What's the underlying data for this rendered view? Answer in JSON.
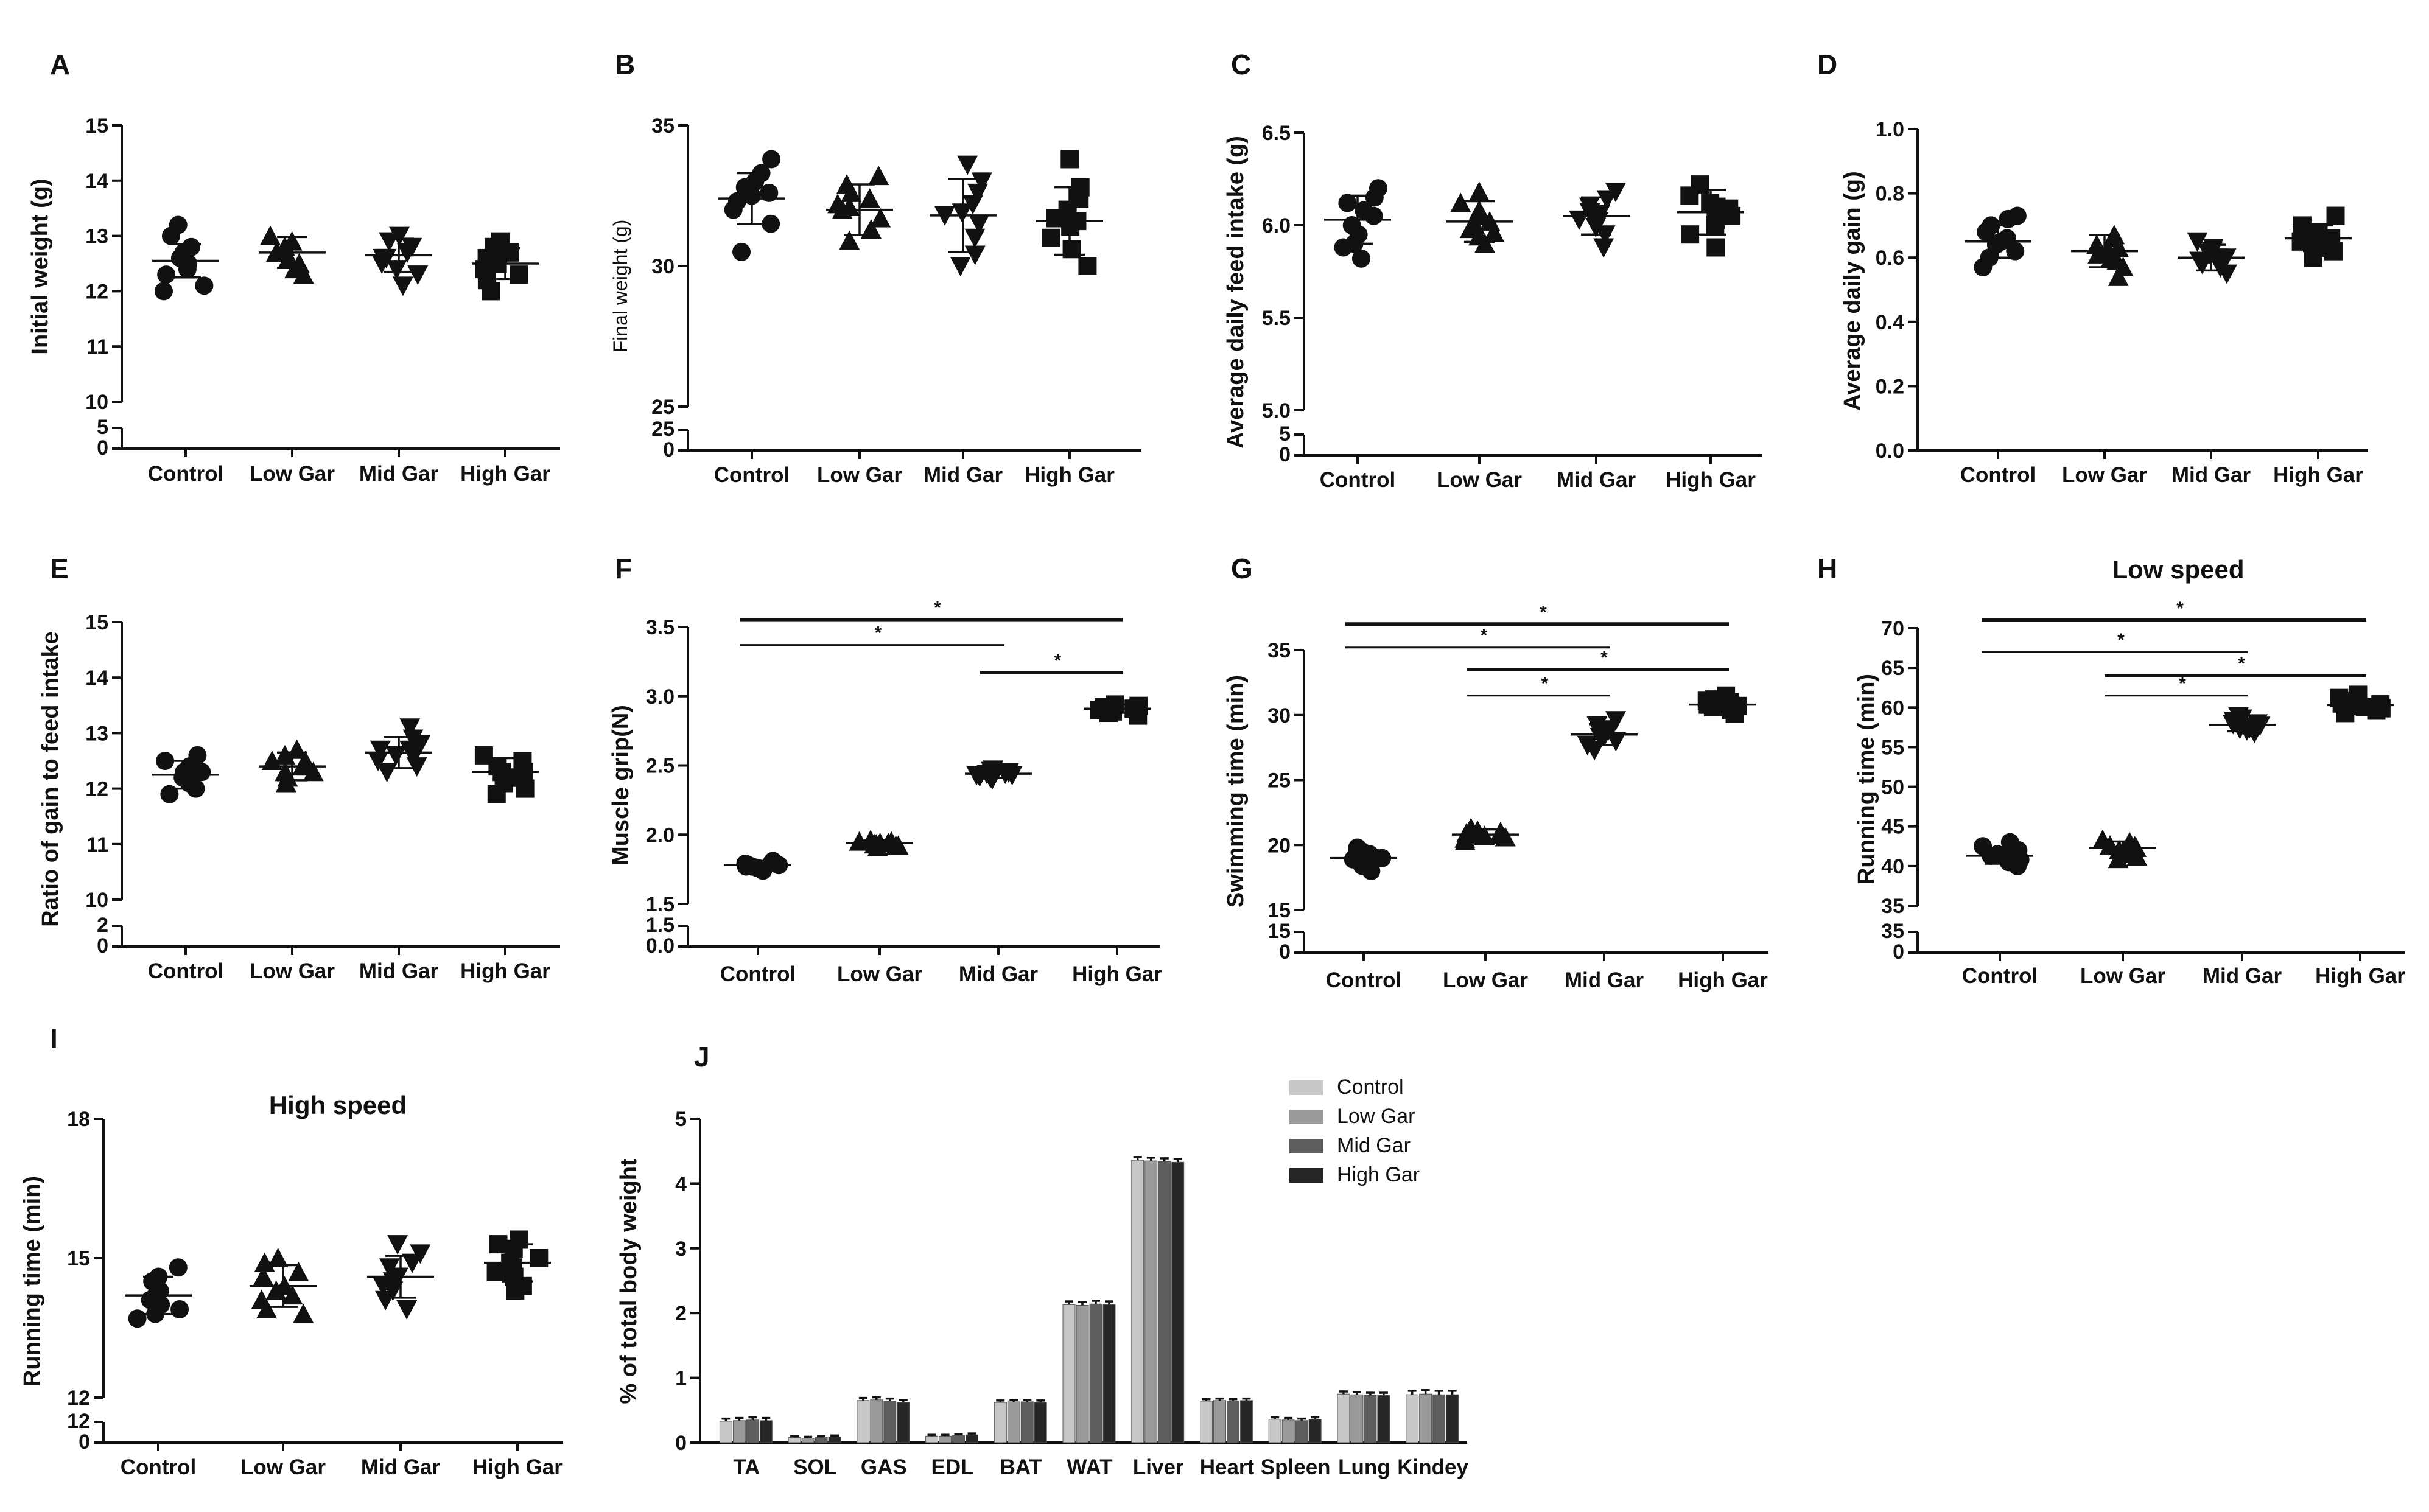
{
  "figure": {
    "panel_letters": [
      "A",
      "B",
      "C",
      "D",
      "E",
      "F",
      "G",
      "H",
      "I",
      "J"
    ],
    "categories": [
      "Control",
      "Low Gar",
      "Mid Gar",
      "High Gar"
    ],
    "significance_mark": "*"
  },
  "chart_data": [
    {
      "id": "A",
      "type": "scatter",
      "title": "",
      "ylabel": "Initial weight (g)",
      "categories": [
        "Control",
        "Low Gar",
        "Mid Gar",
        "High Gar"
      ],
      "ylim": [
        10,
        15
      ],
      "yticks": [
        "10",
        "11",
        "12",
        "13",
        "14",
        "15"
      ],
      "axis_break": {
        "lower_ticks": [
          "0",
          "5"
        ]
      },
      "marker_by_group": [
        "circle",
        "triangle",
        "triangle-down",
        "square"
      ],
      "summary": [
        {
          "mean": 12.55,
          "sd": 0.3
        },
        {
          "mean": 12.7,
          "sd": 0.28
        },
        {
          "mean": 12.65,
          "sd": 0.3
        },
        {
          "mean": 12.5,
          "sd": 0.28
        }
      ],
      "points": [
        [
          12.0,
          12.1,
          12.3,
          12.5,
          12.6,
          12.7,
          12.8,
          13.0,
          13.2,
          12.4
        ],
        [
          12.3,
          12.4,
          12.5,
          12.6,
          12.7,
          12.8,
          12.9,
          13.0,
          12.7,
          12.6
        ],
        [
          12.1,
          12.3,
          12.4,
          12.6,
          12.7,
          12.8,
          12.9,
          13.0,
          12.6,
          12.5
        ],
        [
          12.0,
          12.2,
          12.3,
          12.4,
          12.5,
          12.6,
          12.7,
          12.8,
          12.9,
          12.5
        ]
      ],
      "significance": []
    },
    {
      "id": "B",
      "type": "scatter",
      "title": "",
      "ylabel": "Final weight (g)",
      "categories": [
        "Control",
        "Low Gar",
        "Mid Gar",
        "High Gar"
      ],
      "ylim": [
        25,
        35
      ],
      "yticks": [
        "25",
        "30",
        "35"
      ],
      "axis_break": {
        "lower_ticks": [
          "0",
          "25"
        ]
      },
      "marker_by_group": [
        "circle",
        "triangle",
        "triangle-down",
        "square"
      ],
      "summary": [
        {
          "mean": 32.4,
          "sd": 0.9
        },
        {
          "mean": 32.0,
          "sd": 0.9
        },
        {
          "mean": 31.8,
          "sd": 1.3
        },
        {
          "mean": 31.6,
          "sd": 1.2
        }
      ],
      "points": [
        [
          30.5,
          31.5,
          32.0,
          32.3,
          32.5,
          32.6,
          32.8,
          33.0,
          33.3,
          33.8
        ],
        [
          30.9,
          31.3,
          31.7,
          32.0,
          32.2,
          32.4,
          32.6,
          32.9,
          33.2,
          32.1
        ],
        [
          30.0,
          30.4,
          31.0,
          31.5,
          31.8,
          32.2,
          32.6,
          33.0,
          33.6,
          31.9
        ],
        [
          30.0,
          30.6,
          31.0,
          31.4,
          31.7,
          32.0,
          32.4,
          32.8,
          33.8,
          31.6
        ]
      ],
      "significance": []
    },
    {
      "id": "C",
      "type": "scatter",
      "title": "",
      "ylabel": "Average daily feed intake (g)",
      "categories": [
        "Control",
        "Low Gar",
        "Mid Gar",
        "High Gar"
      ],
      "ylim": [
        5.0,
        6.5
      ],
      "yticks": [
        "5.0",
        "5.5",
        "6.0",
        "6.5"
      ],
      "axis_break": {
        "lower_ticks": [
          "0",
          "5"
        ]
      },
      "marker_by_group": [
        "circle",
        "triangle",
        "triangle-down",
        "square"
      ],
      "summary": [
        {
          "mean": 6.03,
          "sd": 0.13
        },
        {
          "mean": 6.02,
          "sd": 0.11
        },
        {
          "mean": 6.05,
          "sd": 0.1
        },
        {
          "mean": 6.07,
          "sd": 0.12
        }
      ],
      "points": [
        [
          5.82,
          5.88,
          5.95,
          6.0,
          6.05,
          6.08,
          6.12,
          6.15,
          6.2,
          5.9
        ],
        [
          5.9,
          5.94,
          5.98,
          6.02,
          6.05,
          6.08,
          6.12,
          6.18,
          5.96,
          6.0
        ],
        [
          5.88,
          5.95,
          5.99,
          6.03,
          6.07,
          6.1,
          6.14,
          6.18,
          6.02,
          6.06
        ],
        [
          5.88,
          5.95,
          6.0,
          6.05,
          6.09,
          6.12,
          6.16,
          6.22,
          6.03,
          6.1
        ]
      ],
      "significance": []
    },
    {
      "id": "D",
      "type": "scatter",
      "title": "",
      "ylabel": "Average daily gain (g)",
      "categories": [
        "Control",
        "Low Gar",
        "Mid Gar",
        "High Gar"
      ],
      "ylim": [
        0.0,
        1.0
      ],
      "yticks": [
        "0.0",
        "0.2",
        "0.4",
        "0.6",
        "0.8",
        "1.0"
      ],
      "axis_break": null,
      "marker_by_group": [
        "circle",
        "triangle",
        "triangle-down",
        "square"
      ],
      "summary": [
        {
          "mean": 0.65,
          "sd": 0.05
        },
        {
          "mean": 0.62,
          "sd": 0.05
        },
        {
          "mean": 0.6,
          "sd": 0.04
        },
        {
          "mean": 0.66,
          "sd": 0.04
        }
      ],
      "points": [
        [
          0.57,
          0.6,
          0.62,
          0.64,
          0.65,
          0.66,
          0.68,
          0.7,
          0.72,
          0.73
        ],
        [
          0.54,
          0.57,
          0.59,
          0.61,
          0.62,
          0.64,
          0.66,
          0.67,
          0.6,
          0.63
        ],
        [
          0.55,
          0.57,
          0.58,
          0.6,
          0.61,
          0.62,
          0.63,
          0.65,
          0.59,
          0.6
        ],
        [
          0.6,
          0.62,
          0.63,
          0.65,
          0.66,
          0.67,
          0.68,
          0.7,
          0.73,
          0.64
        ]
      ],
      "significance": []
    },
    {
      "id": "E",
      "type": "scatter",
      "title": "",
      "ylabel": "Ratio of gain to feed intake",
      "categories": [
        "Control",
        "Low Gar",
        "Mid Gar",
        "High Gar"
      ],
      "ylim": [
        10,
        15
      ],
      "yticks": [
        "10",
        "11",
        "12",
        "13",
        "14",
        "15"
      ],
      "axis_break": {
        "lower_ticks": [
          "0",
          "2"
        ]
      },
      "marker_by_group": [
        "circle",
        "triangle",
        "triangle-down",
        "square"
      ],
      "summary": [
        {
          "mean": 12.25,
          "sd": 0.25
        },
        {
          "mean": 12.4,
          "sd": 0.25
        },
        {
          "mean": 12.65,
          "sd": 0.28
        },
        {
          "mean": 12.3,
          "sd": 0.25
        }
      ],
      "points": [
        [
          11.9,
          12.0,
          12.1,
          12.2,
          12.3,
          12.4,
          12.5,
          12.6,
          12.3,
          12.2
        ],
        [
          12.1,
          12.2,
          12.3,
          12.4,
          12.5,
          12.6,
          12.7,
          12.4,
          12.3,
          12.5
        ],
        [
          12.3,
          12.4,
          12.5,
          12.6,
          12.7,
          12.8,
          12.9,
          13.1,
          12.6,
          12.7
        ],
        [
          11.9,
          12.0,
          12.1,
          12.2,
          12.3,
          12.4,
          12.5,
          12.6,
          12.3,
          12.2
        ]
      ],
      "significance": []
    },
    {
      "id": "F",
      "type": "scatter",
      "title": "",
      "ylabel": "Muscle grip(N)",
      "categories": [
        "Control",
        "Low Gar",
        "Mid Gar",
        "High Gar"
      ],
      "ylim": [
        1.5,
        3.5
      ],
      "yticks": [
        "1.5",
        "2.0",
        "2.5",
        "3.0",
        "3.5"
      ],
      "axis_break": {
        "lower_ticks": [
          "0.0",
          "1.5"
        ]
      },
      "marker_by_group": [
        "circle",
        "triangle",
        "triangle-down",
        "square"
      ],
      "summary": [
        {
          "mean": 1.78,
          "sd": 0.03
        },
        {
          "mean": 1.94,
          "sd": 0.02
        },
        {
          "mean": 2.44,
          "sd": 0.03
        },
        {
          "mean": 2.91,
          "sd": 0.03
        }
      ],
      "points": [
        [
          1.74,
          1.75,
          1.76,
          1.77,
          1.78,
          1.79,
          1.8,
          1.81,
          1.78,
          1.77
        ],
        [
          1.91,
          1.92,
          1.93,
          1.94,
          1.95,
          1.96,
          1.93,
          1.94,
          1.95,
          1.92
        ],
        [
          2.4,
          2.41,
          2.42,
          2.43,
          2.44,
          2.45,
          2.46,
          2.47,
          2.43,
          2.44
        ],
        [
          2.86,
          2.88,
          2.89,
          2.9,
          2.91,
          2.92,
          2.93,
          2.94,
          2.9,
          2.91
        ]
      ],
      "significance": [
        {
          "from": 0,
          "to": 3,
          "label": "*",
          "y": 3.55
        },
        {
          "from": 0,
          "to": 2,
          "label": "*",
          "y": 3.37
        },
        {
          "from": 2,
          "to": 3,
          "label": "*",
          "y": 3.17
        }
      ]
    },
    {
      "id": "G",
      "type": "scatter",
      "title": "",
      "ylabel": "Swimming time (min)",
      "categories": [
        "Control",
        "Low Gar",
        "Mid Gar",
        "High Gar"
      ],
      "ylim": [
        15,
        35
      ],
      "yticks": [
        "15",
        "20",
        "25",
        "30",
        "35"
      ],
      "axis_break": {
        "lower_ticks": [
          "0",
          "15"
        ]
      },
      "marker_by_group": [
        "circle",
        "triangle",
        "triangle-down",
        "square"
      ],
      "summary": [
        {
          "mean": 19.0,
          "sd": 0.6
        },
        {
          "mean": 20.8,
          "sd": 0.4
        },
        {
          "mean": 28.5,
          "sd": 0.8
        },
        {
          "mean": 30.8,
          "sd": 0.5
        }
      ],
      "points": [
        [
          18.0,
          18.4,
          18.7,
          19.0,
          19.2,
          19.5,
          19.8,
          18.9,
          19.3,
          18.6
        ],
        [
          20.3,
          20.5,
          20.7,
          20.9,
          21.1,
          21.3,
          20.6,
          20.8,
          21.0,
          20.8
        ],
        [
          27.3,
          27.7,
          28.0,
          28.3,
          28.6,
          28.9,
          29.2,
          29.6,
          28.4,
          28.8
        ],
        [
          30.1,
          30.4,
          30.6,
          30.8,
          31.0,
          31.2,
          31.5,
          30.7,
          30.9,
          31.1
        ]
      ],
      "significance": [
        {
          "from": 0,
          "to": 3,
          "label": "*",
          "y": 37.0
        },
        {
          "from": 0,
          "to": 2,
          "label": "*",
          "y": 35.2
        },
        {
          "from": 1,
          "to": 3,
          "label": "*",
          "y": 33.5
        },
        {
          "from": 1,
          "to": 2,
          "label": "*",
          "y": 31.5
        }
      ]
    },
    {
      "id": "H",
      "type": "scatter",
      "title": "Low speed",
      "ylabel": "Running time (min)",
      "categories": [
        "Control",
        "Low Gar",
        "Mid Gar",
        "High Gar"
      ],
      "ylim": [
        35,
        70
      ],
      "yticks": [
        "35",
        "40",
        "45",
        "50",
        "55",
        "60",
        "65",
        "70"
      ],
      "axis_break": {
        "lower_ticks": [
          "0",
          "35"
        ]
      },
      "marker_by_group": [
        "circle",
        "triangle",
        "triangle-down",
        "square"
      ],
      "summary": [
        {
          "mean": 41.3,
          "sd": 1.0
        },
        {
          "mean": 42.3,
          "sd": 0.8
        },
        {
          "mean": 57.8,
          "sd": 0.8
        },
        {
          "mean": 60.3,
          "sd": 0.8
        }
      ],
      "points": [
        [
          40.0,
          40.5,
          41.0,
          41.3,
          41.6,
          42.0,
          42.5,
          43.0,
          40.8,
          41.5
        ],
        [
          41.2,
          41.6,
          42.0,
          42.3,
          42.6,
          43.0,
          43.3,
          42.1,
          42.5,
          40.9
        ],
        [
          56.8,
          57.1,
          57.4,
          57.7,
          58.0,
          58.3,
          58.6,
          58.9,
          57.9,
          57.3
        ],
        [
          59.3,
          59.6,
          59.9,
          60.2,
          60.5,
          60.8,
          61.2,
          61.6,
          60.1,
          60.4
        ]
      ],
      "significance": [
        {
          "from": 0,
          "to": 3,
          "label": "*",
          "y": 71.0
        },
        {
          "from": 0,
          "to": 2,
          "label": "*",
          "y": 67.0
        },
        {
          "from": 1,
          "to": 3,
          "label": "*",
          "y": 64.0
        },
        {
          "from": 1,
          "to": 2,
          "label": "*",
          "y": 61.5
        }
      ]
    },
    {
      "id": "I",
      "type": "scatter",
      "title": "High speed",
      "ylabel": "Running time (min)",
      "categories": [
        "Control",
        "Low Gar",
        "Mid Gar",
        "High Gar"
      ],
      "ylim": [
        12,
        18
      ],
      "yticks": [
        "12",
        "15",
        "18"
      ],
      "axis_break": {
        "lower_ticks": [
          "0",
          "12"
        ]
      },
      "marker_by_group": [
        "circle",
        "triangle",
        "triangle-down",
        "square"
      ],
      "summary": [
        {
          "mean": 14.2,
          "sd": 0.4
        },
        {
          "mean": 14.4,
          "sd": 0.45
        },
        {
          "mean": 14.6,
          "sd": 0.45
        },
        {
          "mean": 14.9,
          "sd": 0.4
        }
      ],
      "points": [
        [
          13.7,
          13.8,
          13.9,
          14.0,
          14.1,
          14.2,
          14.3,
          14.5,
          14.6,
          14.8
        ],
        [
          13.8,
          13.9,
          14.1,
          14.3,
          14.4,
          14.6,
          14.7,
          14.9,
          15.0,
          14.2
        ],
        [
          13.9,
          14.1,
          14.3,
          14.5,
          14.6,
          14.8,
          14.9,
          15.1,
          15.3,
          14.4
        ],
        [
          14.3,
          14.4,
          14.6,
          14.8,
          14.9,
          15.0,
          15.2,
          15.3,
          15.4,
          14.7
        ]
      ],
      "significance": []
    },
    {
      "id": "J",
      "type": "bar",
      "title": "",
      "ylabel": "% of total body weight",
      "categories": [
        "TA",
        "SOL",
        "GAS",
        "EDL",
        "BAT",
        "WAT",
        "Liver",
        "Heart",
        "Spleen",
        "Lung",
        "Kindey"
      ],
      "ylim": [
        0,
        5
      ],
      "yticks": [
        "0",
        "1",
        "2",
        "3",
        "4",
        "5"
      ],
      "legend_position": "top-right",
      "series": [
        {
          "name": "Control",
          "color": "#c8c8c8",
          "values": [
            0.33,
            0.08,
            0.65,
            0.1,
            0.62,
            2.13,
            4.36,
            0.64,
            0.36,
            0.75,
            0.74
          ],
          "errors": [
            0.04,
            0.02,
            0.04,
            0.02,
            0.03,
            0.05,
            0.05,
            0.03,
            0.03,
            0.04,
            0.06
          ]
        },
        {
          "name": "Low Gar",
          "color": "#9a9a9a",
          "values": [
            0.34,
            0.07,
            0.66,
            0.1,
            0.63,
            2.12,
            4.35,
            0.65,
            0.35,
            0.74,
            0.75
          ],
          "errors": [
            0.04,
            0.02,
            0.04,
            0.02,
            0.03,
            0.05,
            0.05,
            0.03,
            0.03,
            0.04,
            0.06
          ]
        },
        {
          "name": "Mid Gar",
          "color": "#5e5e5e",
          "values": [
            0.35,
            0.08,
            0.64,
            0.11,
            0.63,
            2.14,
            4.34,
            0.64,
            0.34,
            0.73,
            0.74
          ],
          "errors": [
            0.04,
            0.02,
            0.04,
            0.02,
            0.03,
            0.05,
            0.05,
            0.03,
            0.03,
            0.04,
            0.06
          ]
        },
        {
          "name": "High Gar",
          "color": "#262626",
          "values": [
            0.34,
            0.09,
            0.62,
            0.12,
            0.62,
            2.13,
            4.33,
            0.65,
            0.36,
            0.73,
            0.74
          ],
          "errors": [
            0.04,
            0.02,
            0.04,
            0.02,
            0.03,
            0.05,
            0.05,
            0.03,
            0.03,
            0.04,
            0.06
          ]
        }
      ]
    }
  ]
}
